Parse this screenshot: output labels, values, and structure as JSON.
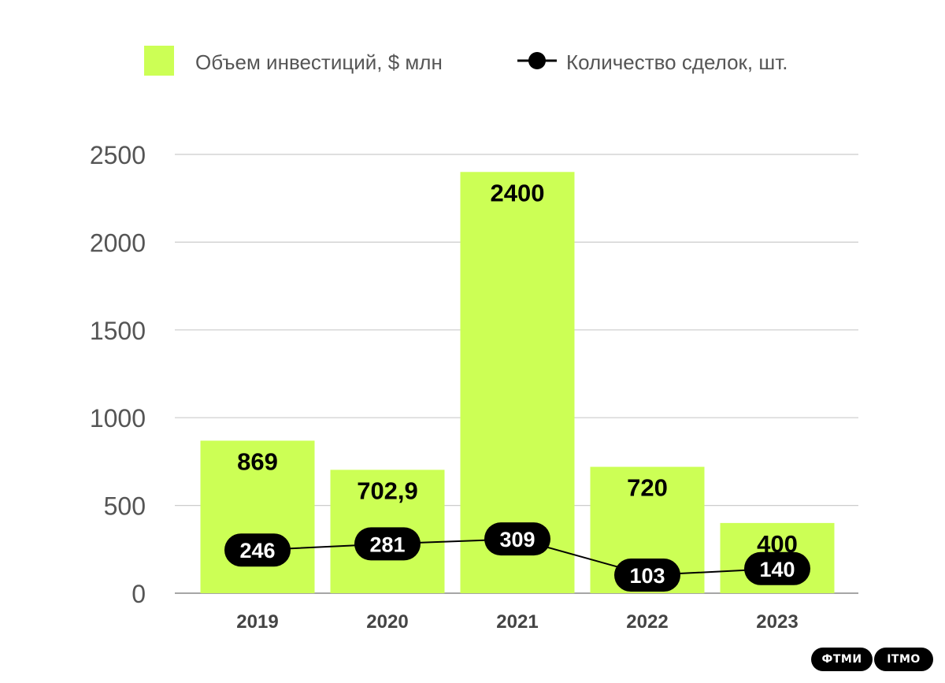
{
  "legend": {
    "bars_label": "Объем инвестиций, $ млн",
    "line_label": "Количество сделок, шт."
  },
  "colors": {
    "bar": "#ccff55",
    "line": "#000000",
    "grid": "#cccccc",
    "axis_text": "#555555"
  },
  "brand": {
    "left": "ФТМИ",
    "right": "ITMO"
  },
  "chart_data": {
    "type": "bar",
    "categories": [
      "2019",
      "2020",
      "2021",
      "2022",
      "2023"
    ],
    "series": [
      {
        "name": "Объем инвестиций, $ млн",
        "type": "bar",
        "values": [
          869,
          702.9,
          2400,
          720,
          400
        ],
        "labels": [
          "869",
          "702,9",
          "2400",
          "720",
          "400"
        ]
      },
      {
        "name": "Количество сделок, шт.",
        "type": "line",
        "values": [
          246,
          281,
          309,
          103,
          140
        ],
        "labels": [
          "246",
          "281",
          "309",
          "103",
          "140"
        ]
      }
    ],
    "yticks": [
      "0",
      "500",
      "1000",
      "1500",
      "2000",
      "2500"
    ],
    "ylim": [
      0,
      2500
    ],
    "grid": true,
    "legend_position": "top"
  }
}
